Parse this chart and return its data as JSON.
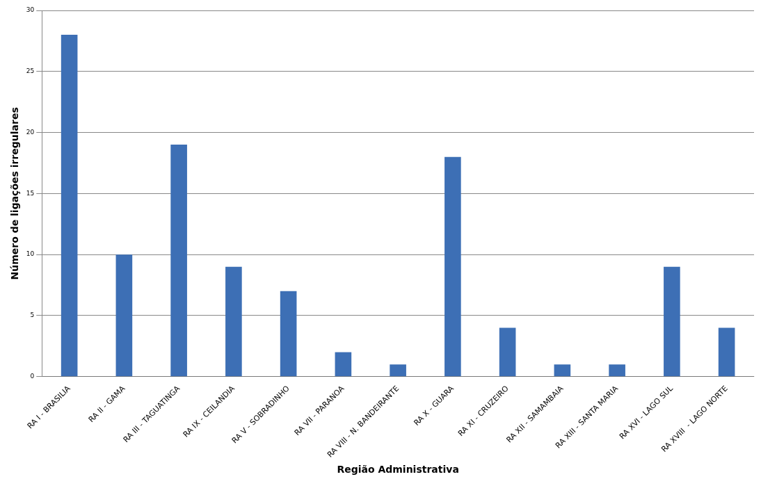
{
  "chart_data": {
    "type": "bar",
    "xlabel": "Região Administrativa",
    "ylabel": "Número de ligações irregulares",
    "categories": [
      "RA I - BRASILIA",
      "RA II - GAMA",
      "RA III - TAGUATINGA",
      "RA IX - CEILANDIA",
      "RA V - SOBRADINHO",
      "RA VII - PARANOA",
      "RA VIII - N. BANDEIRANTE",
      "RA X - GUARA",
      "RA XI - CRUZEIRO",
      "RA XII - SAMAMBAIA",
      "RA XIII - SANTA MARIA",
      "RA XVI - LAGO SUL",
      "RA XVIII  - LAGO NORTE"
    ],
    "values": [
      28,
      10,
      19,
      9,
      7,
      2,
      1,
      18,
      4,
      1,
      1,
      9,
      4
    ],
    "color": "#3d6fb5",
    "ylim": [
      0,
      30
    ],
    "yticks": [
      0,
      5,
      10,
      15,
      20,
      25,
      30
    ],
    "grid": "y",
    "legend": false
  }
}
